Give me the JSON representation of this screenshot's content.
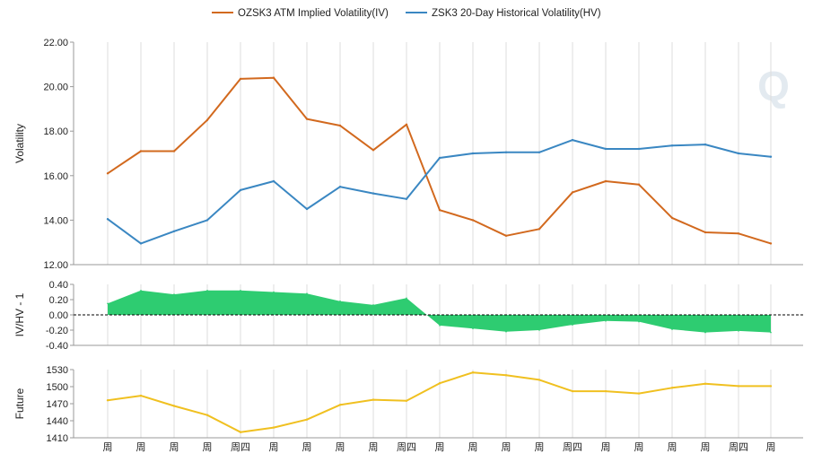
{
  "chart_data": [
    {
      "type": "line",
      "ylabel": "Volatility",
      "ylim": [
        12,
        22
      ],
      "yticks": [
        "12.00",
        "14.00",
        "16.00",
        "18.00",
        "20.00",
        "22.00"
      ],
      "grid": "vertical",
      "legend_position": "top-center",
      "series": [
        {
          "name": "OZSK3 ATM Implied Volatility(IV)",
          "color": "#d2691e",
          "values": [
            16.1,
            17.1,
            17.1,
            18.5,
            20.35,
            20.4,
            18.55,
            18.25,
            17.15,
            18.3,
            14.45,
            14.0,
            13.3,
            13.6,
            15.25,
            15.75,
            15.6,
            14.1,
            13.45,
            13.4,
            12.95
          ]
        },
        {
          "name": "ZSK3 20-Day Historical Volatility(HV)",
          "color": "#3a87c2",
          "values": [
            14.05,
            12.95,
            13.5,
            14.0,
            15.35,
            15.75,
            14.5,
            15.5,
            15.2,
            14.95,
            16.8,
            17.0,
            17.05,
            17.05,
            17.6,
            17.2,
            17.2,
            17.35,
            17.4,
            17.0,
            16.85
          ]
        }
      ]
    },
    {
      "type": "area",
      "ylabel": "IV/HV - 1",
      "ylim": [
        -0.4,
        0.4
      ],
      "yticks": [
        "-0.40",
        "-0.20",
        "0.00",
        "0.20",
        "0.40"
      ],
      "color": "#2ecc71",
      "values": [
        0.15,
        0.32,
        0.27,
        0.32,
        0.32,
        0.3,
        0.28,
        0.18,
        0.13,
        0.22,
        -0.14,
        -0.18,
        -0.22,
        -0.2,
        -0.13,
        -0.08,
        -0.09,
        -0.19,
        -0.23,
        -0.21,
        -0.23
      ]
    },
    {
      "type": "line",
      "ylabel": "Future",
      "ylim": [
        1410,
        1530
      ],
      "yticks": [
        "1410",
        "1440",
        "1470",
        "1500",
        "1530"
      ],
      "color": "#f0c020",
      "values": [
        1476,
        1484,
        1466,
        1450,
        1420,
        1428,
        1442,
        1468,
        1477,
        1475,
        1506,
        1525,
        1520,
        1512,
        1492,
        1492,
        1488,
        1498,
        1505,
        1501,
        1501
      ]
    }
  ],
  "x_labels": [
    "周",
    "周",
    "周",
    "周",
    "周四",
    "周",
    "周",
    "周",
    "周",
    "周四",
    "周",
    "周",
    "周",
    "周",
    "周四",
    "周",
    "周",
    "周",
    "周",
    "周四",
    "周"
  ],
  "watermark": "Q"
}
